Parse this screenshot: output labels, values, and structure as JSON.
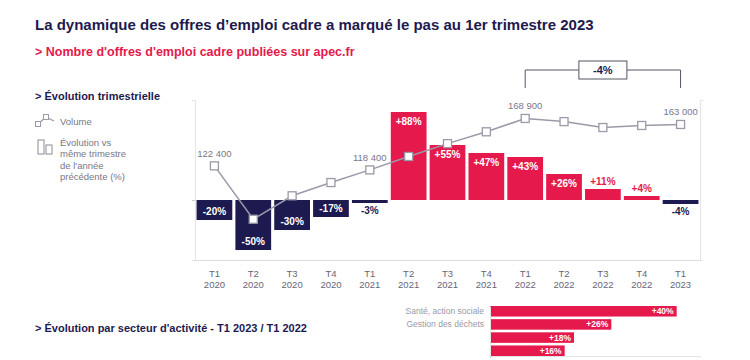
{
  "page": {
    "title": "La dynamique des offres d’emploi cadre a marqué le pas au 1er trimestre 2023",
    "subtitle": "> Nombre d'offres d'emploi cadre publiées sur apec.fr"
  },
  "chart_data": [
    {
      "type": "bar",
      "title": "> Évolution trimestrielle",
      "categories": [
        "T1 2020",
        "T2 2020",
        "T3 2020",
        "T4 2020",
        "T1 2021",
        "T2 2021",
        "T3 2021",
        "T4 2021",
        "T1 2022",
        "T2 2022",
        "T3 2022",
        "T4 2022",
        "T1 2023"
      ],
      "series": [
        {
          "name": "Volume",
          "type": "line",
          "axis": "y2",
          "color": "#9a9aa8",
          "marker": "square",
          "values": [
            122400,
            70000,
            93000,
            106000,
            118400,
            131600,
            144200,
            155800,
            168900,
            165800,
            160000,
            162000,
            163000
          ],
          "value_labels": [
            "122 400",
            null,
            null,
            null,
            "118 400",
            null,
            null,
            null,
            "168 900",
            null,
            null,
            null,
            "163 000"
          ]
        },
        {
          "name": "Évolution vs même trimestre de l'année précédente (%)",
          "type": "bar",
          "colors": [
            "#1d1a4f",
            "#1d1a4f",
            "#1d1a4f",
            "#1d1a4f",
            "#1d1a4f",
            "#e5194b",
            "#e5194b",
            "#e5194b",
            "#e5194b",
            "#e5194b",
            "#e5194b",
            "#e5194b",
            "#1d1a4f"
          ],
          "values": [
            -20,
            -50,
            -30,
            -17,
            -3,
            88,
            55,
            47,
            43,
            26,
            11,
            4,
            -4
          ],
          "value_labels": [
            "-20%",
            "-50%",
            "-30%",
            "-17%",
            "-3%",
            "+88%",
            "+55%",
            "+47%",
            "+43%",
            "+26%",
            "+11%",
            "+4%",
            "-4%"
          ]
        }
      ],
      "ylim": [
        -60,
        100
      ],
      "yticks": [
        0
      ],
      "y2lim": [
        30000,
        187000
      ],
      "y2ticks": [],
      "data_labels": true,
      "tick_labels": "x",
      "legend": "left",
      "annotations": [
        {
          "text": "-4%",
          "between": [
            "T1 2022",
            "T1 2023"
          ]
        }
      ]
    },
    {
      "type": "bar",
      "orientation": "horizontal",
      "title": "> Évolution par secteur d'activité - T1 2023 / T1 2022",
      "categories": [
        "Santé, action sociale",
        "Gestion des déchets",
        null,
        null
      ],
      "values": [
        40,
        26,
        18,
        16
      ],
      "value_labels": [
        "+40%",
        "+26%",
        "+18%",
        "+16%"
      ],
      "color": "#e5194b",
      "xlim": [
        0,
        45
      ],
      "xticks": [
        0
      ],
      "data_labels": true,
      "tick_labels": "y"
    }
  ]
}
